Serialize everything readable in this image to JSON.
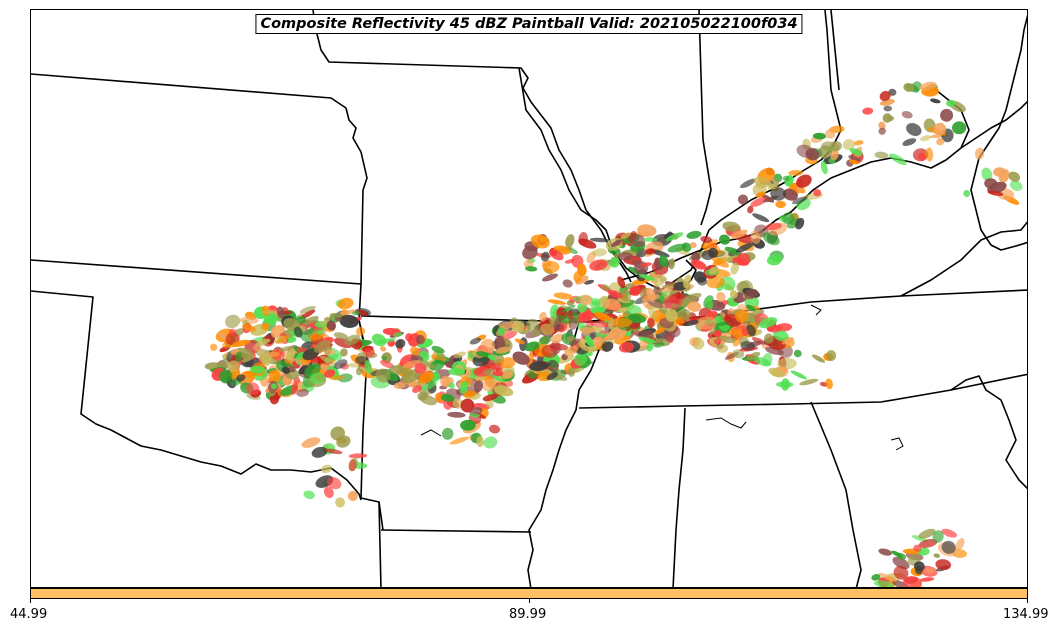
{
  "map": {
    "title": "Composite Reflectivity 45 dBZ Paintball Valid: 202105022100f034",
    "layers": [
      "state-borders",
      "coastlines",
      "reflectivity-paintball"
    ],
    "paintball_colors": [
      "#ff4040",
      "#ff8c00",
      "#f5a35b",
      "#c8241c",
      "#2ca02c",
      "#4fe04f",
      "#8b4a4a",
      "#9a9a4a",
      "#c8bb5a",
      "#3d3d3d"
    ]
  },
  "colorbar": {
    "color": "#ffc163",
    "ticks": [
      "44.99",
      "89.99",
      "134.99"
    ]
  }
}
